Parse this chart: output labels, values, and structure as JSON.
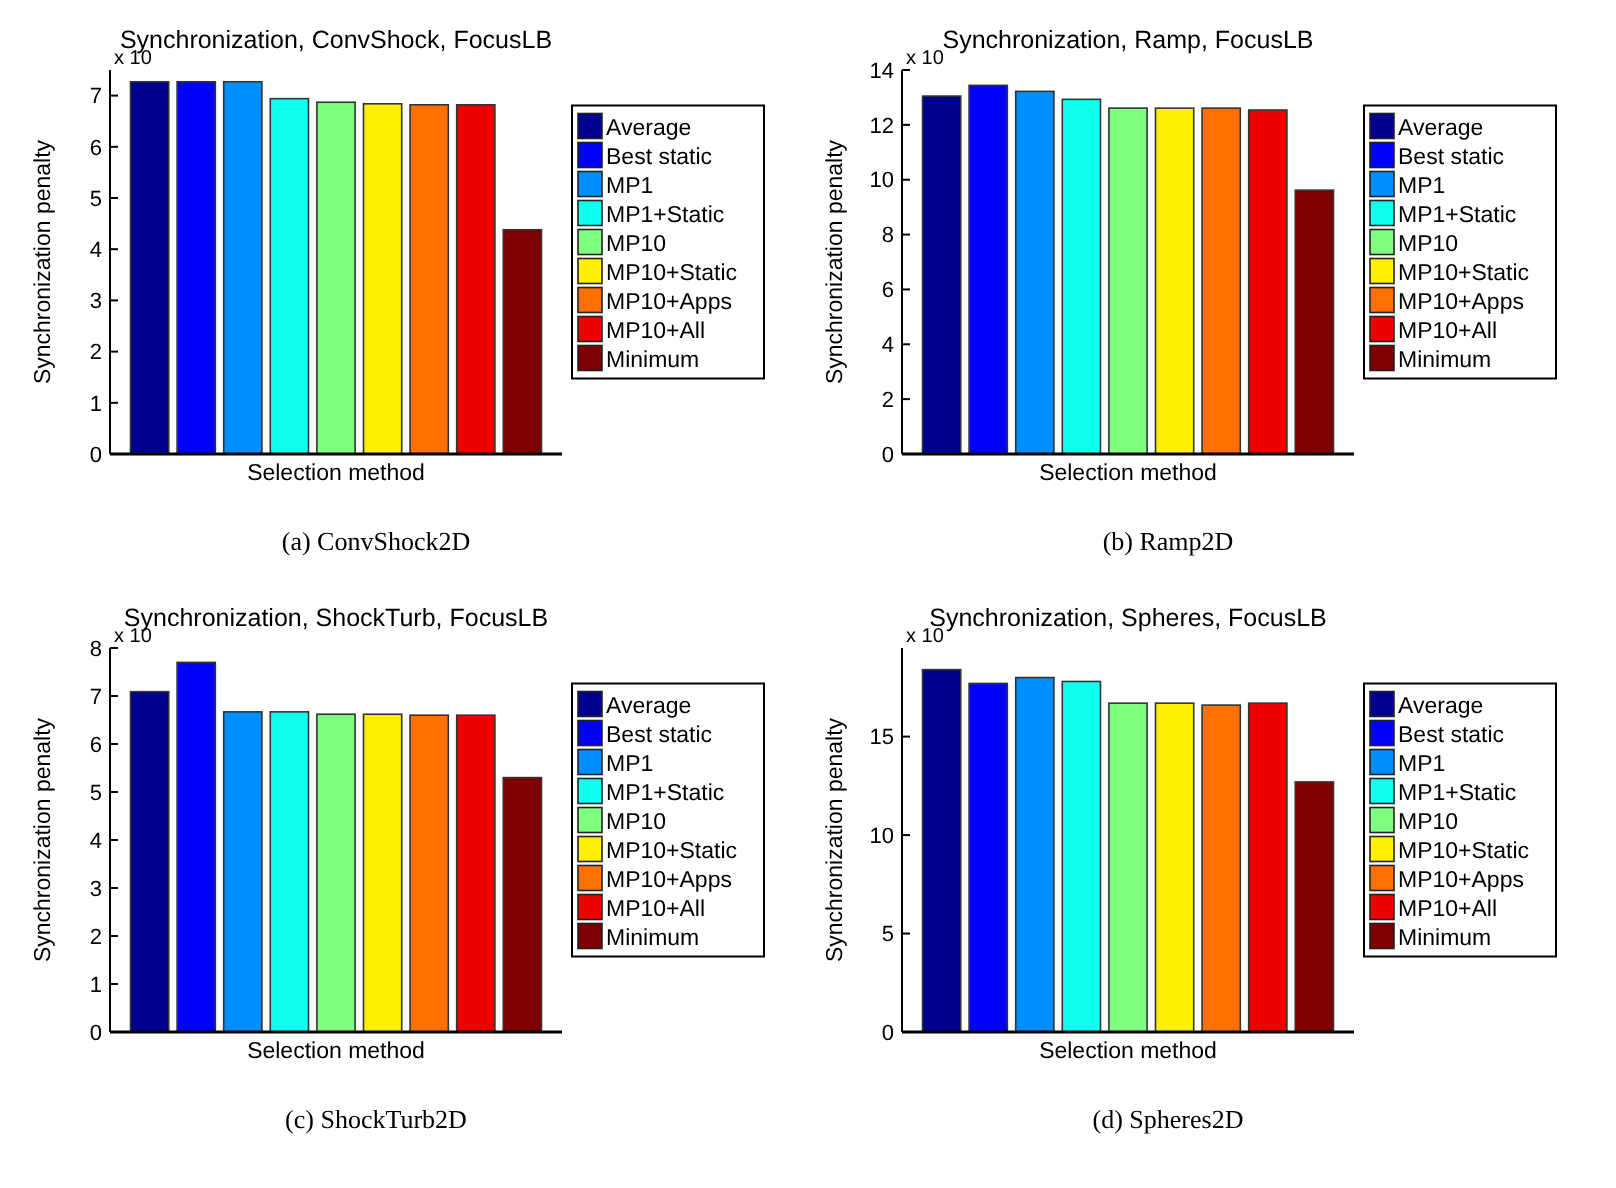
{
  "chart_data": [
    {
      "type": "bar",
      "title": "Synchronization, ConvShock, FocusLB",
      "xlabel": "Selection method",
      "ylabel": "Synchronization penalty",
      "categories": [
        null
      ],
      "ylim": [
        0,
        7.5
      ],
      "yticks": [
        0,
        1,
        2,
        3,
        4,
        5,
        6,
        7
      ],
      "grid": false,
      "legend": "right",
      "annotations": [
        "x 10",
        "(a)  ConvShock2D"
      ],
      "series": [
        {
          "name": "Average",
          "color": "#00008f",
          "values": [
            7.27
          ]
        },
        {
          "name": "Best static",
          "color": "#0000ff",
          "values": [
            7.27
          ]
        },
        {
          "name": "MP1",
          "color": "#008fff",
          "values": [
            7.27
          ]
        },
        {
          "name": "MP1+Static",
          "color": "#10ffef",
          "values": [
            6.94
          ]
        },
        {
          "name": "MP10",
          "color": "#80ff80",
          "values": [
            6.87
          ]
        },
        {
          "name": "MP10+Static",
          "color": "#ffef00",
          "values": [
            6.84
          ]
        },
        {
          "name": "MP10+Apps",
          "color": "#ff7000",
          "values": [
            6.82
          ]
        },
        {
          "name": "MP10+All",
          "color": "#ee0000",
          "values": [
            6.82
          ]
        },
        {
          "name": "Minimum",
          "color": "#7f0000",
          "values": [
            4.38
          ]
        }
      ]
    },
    {
      "type": "bar",
      "title": "Synchronization, Ramp, FocusLB",
      "xlabel": "Selection method",
      "ylabel": "Synchronization penalty",
      "categories": [
        null
      ],
      "ylim": [
        0,
        14
      ],
      "yticks": [
        0,
        2,
        4,
        6,
        8,
        10,
        12,
        14
      ],
      "grid": false,
      "legend": "right",
      "annotations": [
        "x 10",
        "(b)  Ramp2D"
      ],
      "series": [
        {
          "name": "Average",
          "color": "#00008f",
          "values": [
            13.05
          ]
        },
        {
          "name": "Best static",
          "color": "#0000ff",
          "values": [
            13.44
          ]
        },
        {
          "name": "MP1",
          "color": "#008fff",
          "values": [
            13.22
          ]
        },
        {
          "name": "MP1+Static",
          "color": "#10ffef",
          "values": [
            12.93
          ]
        },
        {
          "name": "MP10",
          "color": "#80ff80",
          "values": [
            12.61
          ]
        },
        {
          "name": "MP10+Static",
          "color": "#ffef00",
          "values": [
            12.61
          ]
        },
        {
          "name": "MP10+Apps",
          "color": "#ff7000",
          "values": [
            12.61
          ]
        },
        {
          "name": "MP10+All",
          "color": "#ee0000",
          "values": [
            12.54
          ]
        },
        {
          "name": "Minimum",
          "color": "#7f0000",
          "values": [
            9.62
          ]
        }
      ]
    },
    {
      "type": "bar",
      "title": "Synchronization, ShockTurb, FocusLB",
      "xlabel": "Selection method",
      "ylabel": "Synchronization penalty",
      "categories": [
        null
      ],
      "ylim": [
        0,
        8
      ],
      "yticks": [
        0,
        1,
        2,
        3,
        4,
        5,
        6,
        7,
        8
      ],
      "grid": false,
      "legend": "right",
      "annotations": [
        "x 10",
        "(c)  ShockTurb2D"
      ],
      "series": [
        {
          "name": "Average",
          "color": "#00008f",
          "values": [
            7.09
          ]
        },
        {
          "name": "Best static",
          "color": "#0000ff",
          "values": [
            7.7
          ]
        },
        {
          "name": "MP1",
          "color": "#008fff",
          "values": [
            6.67
          ]
        },
        {
          "name": "MP1+Static",
          "color": "#10ffef",
          "values": [
            6.67
          ]
        },
        {
          "name": "MP10",
          "color": "#80ff80",
          "values": [
            6.62
          ]
        },
        {
          "name": "MP10+Static",
          "color": "#ffef00",
          "values": [
            6.62
          ]
        },
        {
          "name": "MP10+Apps",
          "color": "#ff7000",
          "values": [
            6.6
          ]
        },
        {
          "name": "MP10+All",
          "color": "#ee0000",
          "values": [
            6.6
          ]
        },
        {
          "name": "Minimum",
          "color": "#7f0000",
          "values": [
            5.3
          ]
        }
      ]
    },
    {
      "type": "bar",
      "title": "Synchronization, Spheres, FocusLB",
      "xlabel": "Selection method",
      "ylabel": "Synchronization penalty",
      "categories": [
        null
      ],
      "ylim": [
        0,
        19.5
      ],
      "yticks": [
        0,
        5,
        10,
        15
      ],
      "grid": false,
      "legend": "right",
      "annotations": [
        "x 10",
        "(d)  Spheres2D"
      ],
      "series": [
        {
          "name": "Average",
          "color": "#00008f",
          "values": [
            18.4
          ]
        },
        {
          "name": "Best static",
          "color": "#0000ff",
          "values": [
            17.7
          ]
        },
        {
          "name": "MP1",
          "color": "#008fff",
          "values": [
            18.0
          ]
        },
        {
          "name": "MP1+Static",
          "color": "#10ffef",
          "values": [
            17.8
          ]
        },
        {
          "name": "MP10",
          "color": "#80ff80",
          "values": [
            16.7
          ]
        },
        {
          "name": "MP10+Static",
          "color": "#ffef00",
          "values": [
            16.7
          ]
        },
        {
          "name": "MP10+Apps",
          "color": "#ff7000",
          "values": [
            16.6
          ]
        },
        {
          "name": "MP10+All",
          "color": "#ee0000",
          "values": [
            16.7
          ]
        },
        {
          "name": "Minimum",
          "color": "#7f0000",
          "values": [
            12.7
          ]
        }
      ]
    }
  ]
}
